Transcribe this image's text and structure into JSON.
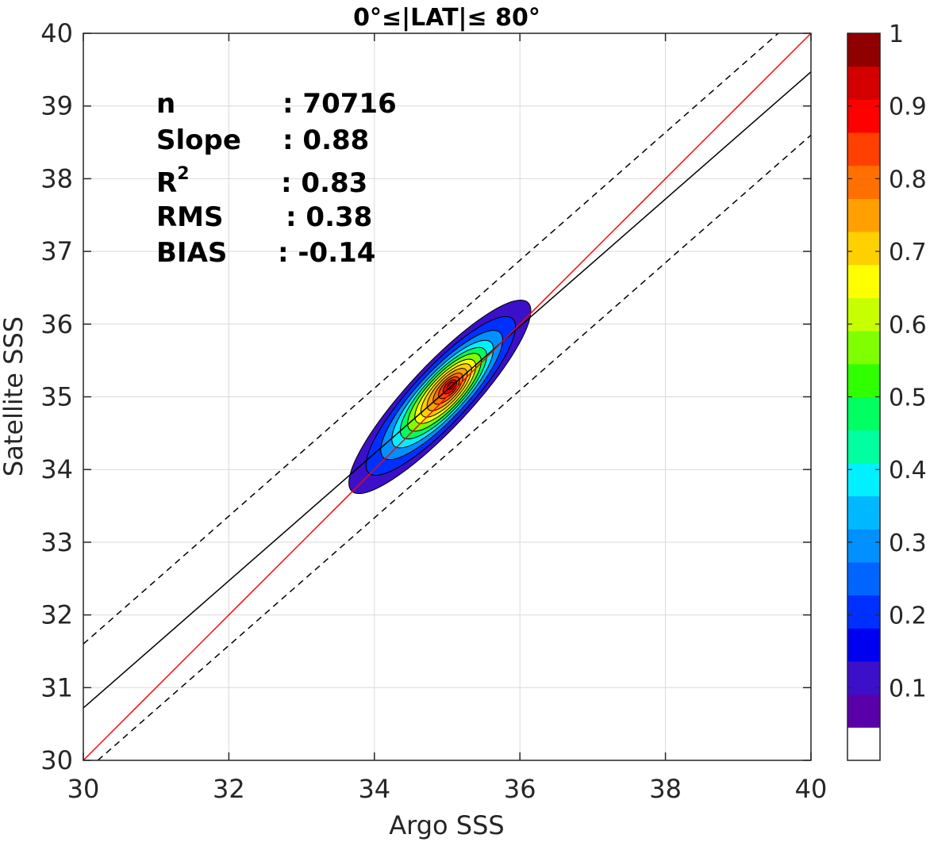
{
  "chart_data": {
    "type": "heatmap",
    "subtype": "density-contour-scatter",
    "title": "0°≤|LAT|≤ 80°",
    "xlabel": "Argo SSS",
    "ylabel": "Satellite SSS",
    "xlim": [
      30,
      40
    ],
    "ylim": [
      30,
      40
    ],
    "xticks": [
      30,
      32,
      34,
      36,
      38,
      40
    ],
    "yticks": [
      30,
      31,
      32,
      33,
      34,
      35,
      36,
      37,
      38,
      39,
      40
    ],
    "grid": true,
    "stats": [
      {
        "label": "n",
        "value": ": 70716"
      },
      {
        "label": "Slope",
        "value": ": 0.88"
      },
      {
        "label": "R",
        "sup": "2",
        "value": ": 0.83"
      },
      {
        "label": "RMS",
        "value": ": 0.38"
      },
      {
        "label": "BIAS",
        "value": ": -0.14"
      }
    ],
    "lines": {
      "one_to_one": {
        "color": "#ff0000",
        "points": [
          [
            30,
            30
          ],
          [
            40,
            40
          ]
        ]
      },
      "regression": {
        "color": "#000000",
        "style": "solid",
        "points": [
          [
            30,
            30.72
          ],
          [
            40,
            39.47
          ]
        ]
      },
      "upper_bound": {
        "color": "#000000",
        "style": "dashed",
        "points": [
          [
            30,
            31.6
          ],
          [
            39.55,
            40
          ]
        ]
      },
      "lower_bound": {
        "color": "#000000",
        "style": "dashed",
        "points": [
          [
            30.2,
            30
          ],
          [
            40,
            38.6
          ]
        ]
      }
    },
    "density_peak": {
      "x": 35.05,
      "y": 35.15
    },
    "colorbar": {
      "range": [
        0,
        1
      ],
      "ticks": [
        0.1,
        0.2,
        0.3,
        0.4,
        0.5,
        0.6,
        0.7,
        0.8,
        0.9,
        1
      ],
      "tick_labels": [
        "0.1",
        "0.2",
        "0.3",
        "0.4",
        "0.5",
        "0.6",
        "0.7",
        "0.8",
        "0.9",
        "1"
      ],
      "colors": [
        "#ffffff",
        "#5a00a8",
        "#3b10c8",
        "#0000f0",
        "#0030ff",
        "#0064ff",
        "#0090ff",
        "#00b8ff",
        "#00f0ff",
        "#00ffa0",
        "#00ff60",
        "#30ff00",
        "#80ff00",
        "#c8ff00",
        "#ffff00",
        "#ffd000",
        "#ffa000",
        "#ff7000",
        "#ff4000",
        "#ff0000",
        "#d40000",
        "#900000"
      ]
    }
  }
}
